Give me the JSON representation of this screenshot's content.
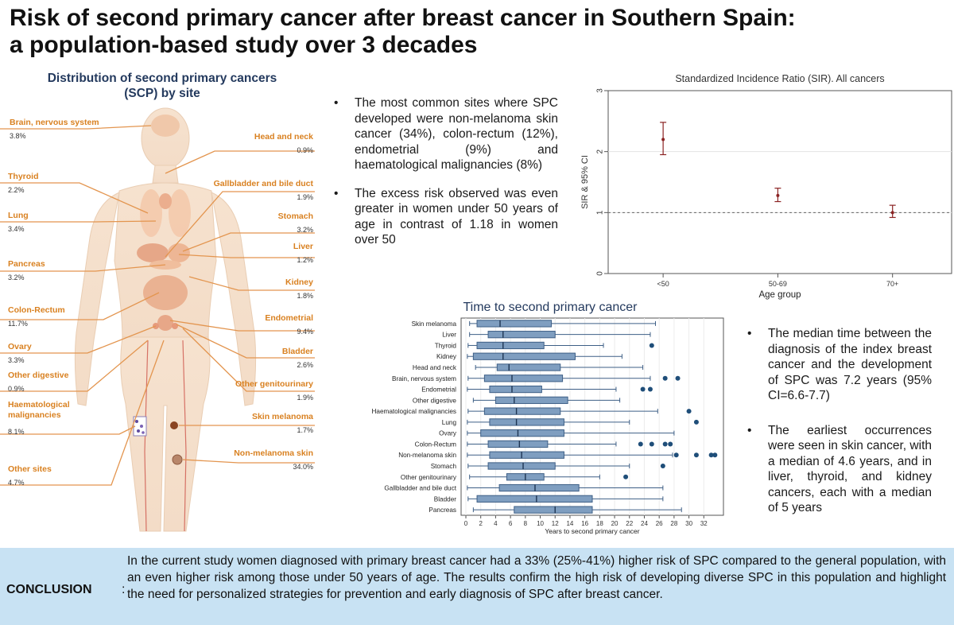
{
  "title": {
    "line1": "Risk of second primary cancer after breast cancer in Southern Spain:",
    "line2": "a population-based study over 3 decades"
  },
  "distribution": {
    "heading_line1": "Distribution of second primary cancers",
    "heading_line2": "(SCP) by site",
    "sites_left": [
      {
        "name": "Brain, nervous system",
        "pct": "3.8%"
      },
      {
        "name": "Thyroid",
        "pct": "2.2%"
      },
      {
        "name": "Lung",
        "pct": "3.4%"
      },
      {
        "name": "Pancreas",
        "pct": "3.2%"
      },
      {
        "name": "Colon-Rectum",
        "pct": "11.7%"
      },
      {
        "name": "Ovary",
        "pct": "3.3%"
      },
      {
        "name": "Other digestive",
        "pct": "0.9%"
      },
      {
        "name": "Haematological malignancies",
        "pct": "8.1%"
      },
      {
        "name": "Other sites",
        "pct": "4.7%"
      }
    ],
    "sites_right": [
      {
        "name": "Head and neck",
        "pct": "0.9%"
      },
      {
        "name": "Gallbladder and bile duct",
        "pct": "1.9%"
      },
      {
        "name": "Stomach",
        "pct": "3.2%"
      },
      {
        "name": "Liver",
        "pct": "1.2%"
      },
      {
        "name": "Kidney",
        "pct": "1.8%"
      },
      {
        "name": "Endometrial",
        "pct": "9.4%"
      },
      {
        "name": "Bladder",
        "pct": "2.6%"
      },
      {
        "name": "Other genitourinary",
        "pct": "1.9%"
      },
      {
        "name": "Skin melanoma",
        "pct": "1.7%"
      },
      {
        "name": "Non-melanoma skin",
        "pct": "34.0%"
      }
    ]
  },
  "bullets_top": [
    "The most common sites where SPC developed were non-melanoma skin cancer (34%), colon-rectum (12%), endometrial (9%) and haematological malignancies (8%)",
    "The excess risk observed was even greater in women under 50 years of age in contrast of 1.18 in women over 50"
  ],
  "bullets_right": [
    "The median time between the diagnosis of the index breast cancer and the development of SPC was 7.2 years (95% CI=6.6-7.7)",
    "The earliest occurrences were seen in skin cancer, with a median of 4.6 years, and in liver, thyroid, and kidney cancers, each with a median of 5 years"
  ],
  "bullet_symbol": "•",
  "conclusion": {
    "label": "CONCLUSION",
    "colon": ":",
    "text": "In the current study women diagnosed with primary breast cancer had a 33% (25%-41%) higher risk of SPC compared to the general population, with an even higher risk among those under 50 years of age. The results confirm the high risk of developing diverse SPC in this population and highlight the need for personalized strategies for prevention and early diagnosis of SPC after breast cancer."
  },
  "colors": {
    "site_label": "#d98121",
    "heading_blue": "#243a5e",
    "box_fill": "#7f9ec0",
    "box_stroke": "#3e5f86",
    "outlier": "#1f4e79",
    "sir_marker": "#8b2323",
    "conclusion_bg": "#c8e2f3"
  },
  "chart_data": [
    {
      "type": "scatter",
      "title": "Standardized Incidence Ratio (SIR). All cancers",
      "xlabel": "Age group",
      "ylabel": "SIR & 95% CI",
      "categories": [
        "<50",
        "50-69",
        "70+"
      ],
      "sir": [
        2.2,
        1.28,
        1.0
      ],
      "ci_low": [
        1.95,
        1.18,
        0.92
      ],
      "ci_high": [
        2.48,
        1.4,
        1.12
      ],
      "reference_line": 1,
      "ylim": [
        0,
        3
      ],
      "yticks": [
        "0",
        "1",
        "2",
        "3"
      ]
    },
    {
      "type": "box",
      "title": "Time to second primary cancer",
      "xlabel": "Years to second primary cancer",
      "xticks": [
        "0",
        "2",
        "4",
        "6",
        "8",
        "10",
        "12",
        "14",
        "16",
        "18",
        "20",
        "22",
        "24",
        "26",
        "28",
        "30",
        "32"
      ],
      "xlim": [
        0,
        34
      ],
      "series": [
        {
          "name": "Skin melanoma",
          "whisker_low": 0.5,
          "q1": 1.5,
          "median": 4.6,
          "q3": 11.5,
          "whisker_high": 25.5,
          "outliers": []
        },
        {
          "name": "Liver",
          "whisker_low": 0.5,
          "q1": 3,
          "median": 5,
          "q3": 12,
          "whisker_high": 24.8,
          "outliers": []
        },
        {
          "name": "Thyroid",
          "whisker_low": 0.3,
          "q1": 1.5,
          "median": 5,
          "q3": 10.5,
          "whisker_high": 18.5,
          "outliers": [
            25
          ]
        },
        {
          "name": "Kidney",
          "whisker_low": 0.2,
          "q1": 1,
          "median": 5,
          "q3": 14.7,
          "whisker_high": 21,
          "outliers": []
        },
        {
          "name": "Head and neck",
          "whisker_low": 1.3,
          "q1": 4.2,
          "median": 5.8,
          "q3": 12.7,
          "whisker_high": 23.8,
          "outliers": []
        },
        {
          "name": "Brain, nervous system",
          "whisker_low": 0.3,
          "q1": 2.5,
          "median": 6.2,
          "q3": 13,
          "whisker_high": 24.8,
          "outliers": [
            26.8,
            28.5
          ]
        },
        {
          "name": "Endometrial",
          "whisker_low": 0.2,
          "q1": 3.2,
          "median": 6.2,
          "q3": 10.2,
          "whisker_high": 20.2,
          "outliers": [
            23.8,
            24.8
          ]
        },
        {
          "name": "Other digestive",
          "whisker_low": 1,
          "q1": 4,
          "median": 6.5,
          "q3": 13.7,
          "whisker_high": 20.7,
          "outliers": []
        },
        {
          "name": "Haematological malignancies",
          "whisker_low": 0.3,
          "q1": 2.5,
          "median": 6.8,
          "q3": 12.7,
          "whisker_high": 25.8,
          "outliers": [
            30
          ]
        },
        {
          "name": "Lung",
          "whisker_low": 0.2,
          "q1": 3.2,
          "median": 6.8,
          "q3": 13.2,
          "whisker_high": 22,
          "outliers": [
            31
          ]
        },
        {
          "name": "Ovary",
          "whisker_low": 0.2,
          "q1": 2,
          "median": 7,
          "q3": 13.2,
          "whisker_high": 28,
          "outliers": []
        },
        {
          "name": "Colon-Rectum",
          "whisker_low": 0.2,
          "q1": 3,
          "median": 7.2,
          "q3": 11,
          "whisker_high": 20.2,
          "outliers": [
            23.5,
            25,
            26.8,
            27.5
          ]
        },
        {
          "name": "Non-melanoma skin",
          "whisker_low": 0.2,
          "q1": 3.2,
          "median": 7.5,
          "q3": 13.2,
          "whisker_high": 27.8,
          "outliers": [
            28.3,
            31,
            33,
            33.5
          ]
        },
        {
          "name": "Stomach",
          "whisker_low": 0.3,
          "q1": 3,
          "median": 7.7,
          "q3": 12,
          "whisker_high": 22,
          "outliers": [
            26.5
          ]
        },
        {
          "name": "Other genitourinary",
          "whisker_low": 0.5,
          "q1": 5.5,
          "median": 8,
          "q3": 10.5,
          "whisker_high": 18,
          "outliers": [
            21.5
          ]
        },
        {
          "name": "Gallbladder and bile duct",
          "whisker_low": 0.2,
          "q1": 4.5,
          "median": 9.3,
          "q3": 15.2,
          "whisker_high": 26.5,
          "outliers": []
        },
        {
          "name": "Bladder",
          "whisker_low": 0.3,
          "q1": 1.5,
          "median": 9.5,
          "q3": 17,
          "whisker_high": 26.5,
          "outliers": []
        },
        {
          "name": "Pancreas",
          "whisker_low": 1,
          "q1": 6.5,
          "median": 12,
          "q3": 17,
          "whisker_high": 29,
          "outliers": []
        }
      ]
    }
  ]
}
